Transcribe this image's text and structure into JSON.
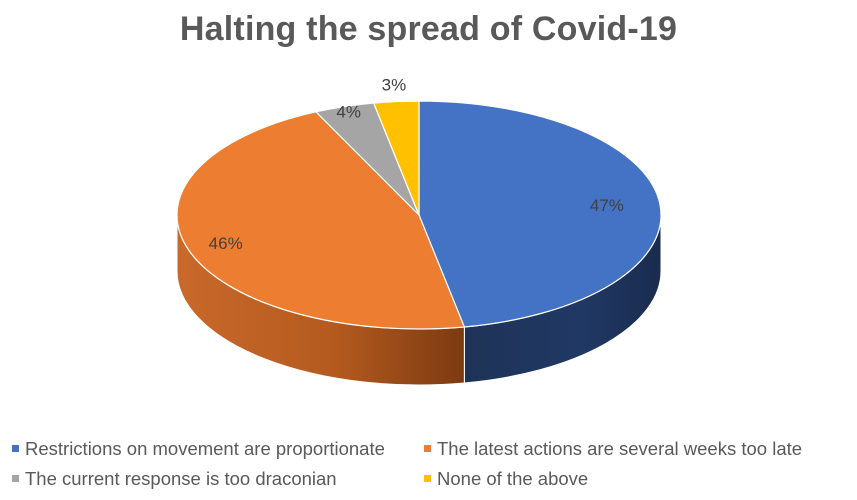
{
  "chart_data": {
    "type": "pie",
    "title": "Halting the spread of Covid-19",
    "categories": [
      "Restrictions on movement are proportionate",
      "The latest actions are several weeks too late",
      "The current response is too draconian",
      "None of the above"
    ],
    "values": [
      47,
      46,
      4,
      3
    ],
    "value_labels": [
      "47%",
      "46%",
      "4%",
      "3%"
    ],
    "colors": [
      "#4472C4",
      "#ED7D31",
      "#A5A5A5",
      "#FFC000"
    ],
    "legend_position": "bottom",
    "style": "3d"
  }
}
